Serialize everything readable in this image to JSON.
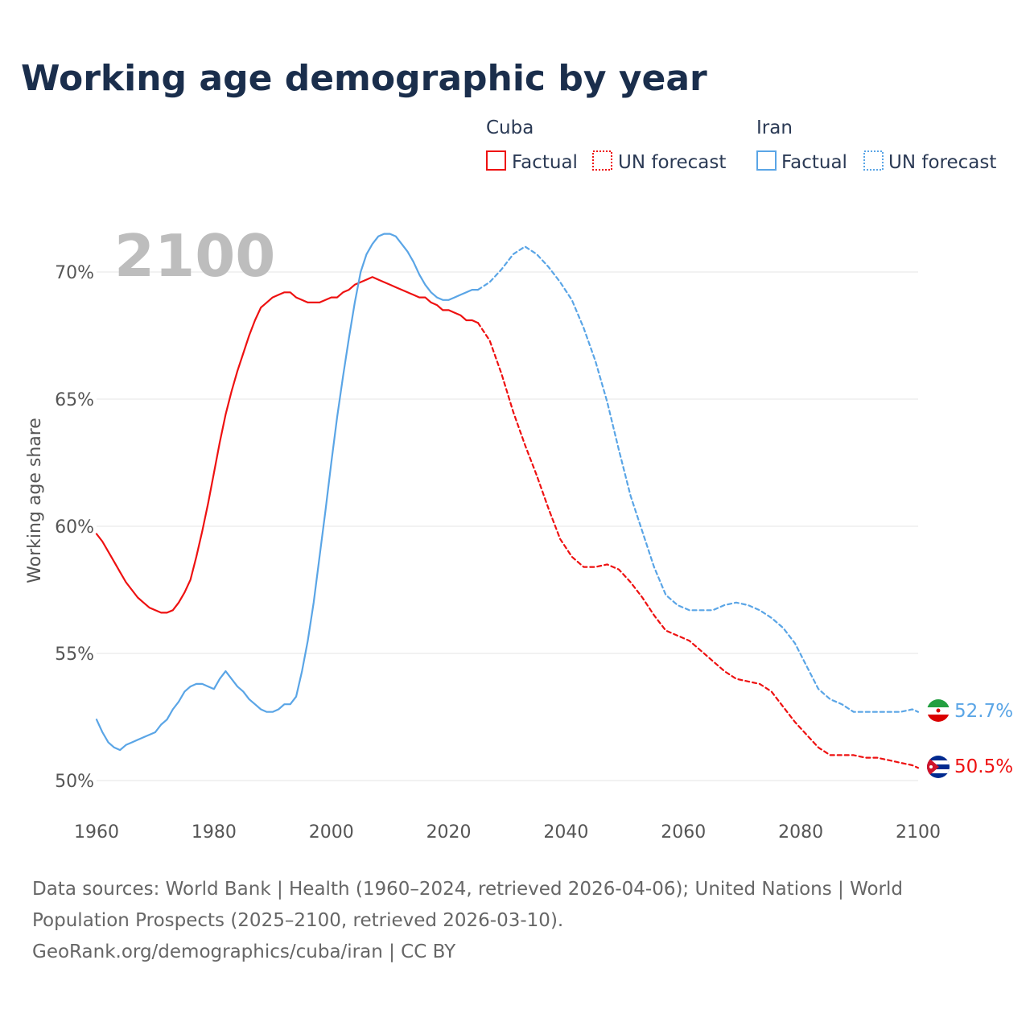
{
  "colors": {
    "cuba": "#ee1111",
    "iran": "#5aa5e6",
    "title": "#1a2e4c"
  },
  "chart_data": {
    "type": "line",
    "title": "Working age demographic by year",
    "ylabel": "Working age share",
    "xlabel": "",
    "highlight_year": "2100",
    "xlim": [
      1960,
      2100
    ],
    "ylim": [
      49,
      72
    ],
    "x_ticks": [
      1960,
      1980,
      2000,
      2020,
      2040,
      2060,
      2080,
      2100
    ],
    "y_ticks": [
      50,
      55,
      60,
      65,
      70
    ],
    "y_tick_labels": [
      "50%",
      "55%",
      "60%",
      "65%",
      "70%"
    ],
    "legend": {
      "groups": [
        {
          "name": "Cuba",
          "factual": "Factual",
          "forecast": "UN forecast",
          "color_key": "cuba"
        },
        {
          "name": "Iran",
          "factual": "Factual",
          "forecast": "UN forecast",
          "color_key": "iran"
        }
      ]
    },
    "end_labels": {
      "cuba": "50.5%",
      "iran": "52.7%"
    },
    "series": [
      {
        "name": "Cuba",
        "color_key": "cuba",
        "kind": "factual",
        "x": [
          1960,
          1961,
          1962,
          1963,
          1964,
          1965,
          1966,
          1967,
          1968,
          1969,
          1970,
          1971,
          1972,
          1973,
          1974,
          1975,
          1976,
          1977,
          1978,
          1979,
          1980,
          1981,
          1982,
          1983,
          1984,
          1985,
          1986,
          1987,
          1988,
          1989,
          1990,
          1991,
          1992,
          1993,
          1994,
          1995,
          1996,
          1997,
          1998,
          1999,
          2000,
          2001,
          2002,
          2003,
          2004,
          2005,
          2006,
          2007,
          2008,
          2009,
          2010,
          2011,
          2012,
          2013,
          2014,
          2015,
          2016,
          2017,
          2018,
          2019,
          2020,
          2021,
          2022,
          2023,
          2024,
          2025
        ],
        "y": [
          59.7,
          59.4,
          59.0,
          58.6,
          58.2,
          57.8,
          57.5,
          57.2,
          57.0,
          56.8,
          56.7,
          56.6,
          56.6,
          56.7,
          57.0,
          57.4,
          57.9,
          58.8,
          59.8,
          60.9,
          62.1,
          63.3,
          64.4,
          65.3,
          66.1,
          66.8,
          67.5,
          68.1,
          68.6,
          68.8,
          69.0,
          69.1,
          69.2,
          69.2,
          69.0,
          68.9,
          68.8,
          68.8,
          68.8,
          68.9,
          69.0,
          69.0,
          69.2,
          69.3,
          69.5,
          69.6,
          69.7,
          69.8,
          69.7,
          69.6,
          69.5,
          69.4,
          69.3,
          69.2,
          69.1,
          69.0,
          69.0,
          68.8,
          68.7,
          68.5,
          68.5,
          68.4,
          68.3,
          68.1,
          68.1,
          68.0
        ]
      },
      {
        "name": "Cuba",
        "color_key": "cuba",
        "kind": "forecast",
        "x": [
          2025,
          2027,
          2029,
          2031,
          2033,
          2035,
          2037,
          2039,
          2041,
          2043,
          2045,
          2047,
          2049,
          2051,
          2053,
          2055,
          2057,
          2059,
          2061,
          2063,
          2065,
          2067,
          2069,
          2071,
          2073,
          2075,
          2077,
          2079,
          2081,
          2083,
          2085,
          2087,
          2089,
          2091,
          2093,
          2095,
          2097,
          2099,
          2100
        ],
        "y": [
          68.0,
          67.3,
          66.0,
          64.5,
          63.2,
          62.0,
          60.7,
          59.5,
          58.8,
          58.4,
          58.4,
          58.5,
          58.3,
          57.8,
          57.2,
          56.5,
          55.9,
          55.7,
          55.5,
          55.1,
          54.7,
          54.3,
          54.0,
          53.9,
          53.8,
          53.5,
          52.9,
          52.3,
          51.8,
          51.3,
          51.0,
          51.0,
          51.0,
          50.9,
          50.9,
          50.8,
          50.7,
          50.6,
          50.5
        ]
      },
      {
        "name": "Iran",
        "color_key": "iran",
        "kind": "factual",
        "x": [
          1960,
          1961,
          1962,
          1963,
          1964,
          1965,
          1966,
          1967,
          1968,
          1969,
          1970,
          1971,
          1972,
          1973,
          1974,
          1975,
          1976,
          1977,
          1978,
          1979,
          1980,
          1981,
          1982,
          1983,
          1984,
          1985,
          1986,
          1987,
          1988,
          1989,
          1990,
          1991,
          1992,
          1993,
          1994,
          1995,
          1996,
          1997,
          1998,
          1999,
          2000,
          2001,
          2002,
          2003,
          2004,
          2005,
          2006,
          2007,
          2008,
          2009,
          2010,
          2011,
          2012,
          2013,
          2014,
          2015,
          2016,
          2017,
          2018,
          2019,
          2020,
          2021,
          2022,
          2023,
          2024,
          2025
        ],
        "y": [
          52.4,
          51.9,
          51.5,
          51.3,
          51.2,
          51.4,
          51.5,
          51.6,
          51.7,
          51.8,
          51.9,
          52.2,
          52.4,
          52.8,
          53.1,
          53.5,
          53.7,
          53.8,
          53.8,
          53.7,
          53.6,
          54.0,
          54.3,
          54.0,
          53.7,
          53.5,
          53.2,
          53.0,
          52.8,
          52.7,
          52.7,
          52.8,
          53.0,
          53.0,
          53.3,
          54.3,
          55.5,
          57.0,
          58.8,
          60.6,
          62.5,
          64.3,
          65.9,
          67.4,
          68.8,
          70.0,
          70.7,
          71.1,
          71.4,
          71.5,
          71.5,
          71.4,
          71.1,
          70.8,
          70.4,
          69.9,
          69.5,
          69.2,
          69.0,
          68.9,
          68.9,
          69.0,
          69.1,
          69.2,
          69.3,
          69.3
        ]
      },
      {
        "name": "Iran",
        "color_key": "iran",
        "kind": "forecast",
        "x": [
          2025,
          2027,
          2029,
          2031,
          2033,
          2035,
          2037,
          2039,
          2041,
          2043,
          2045,
          2047,
          2049,
          2051,
          2053,
          2055,
          2057,
          2059,
          2061,
          2063,
          2065,
          2067,
          2069,
          2071,
          2073,
          2075,
          2077,
          2079,
          2081,
          2083,
          2085,
          2087,
          2089,
          2091,
          2093,
          2095,
          2097,
          2099,
          2100
        ],
        "y": [
          69.3,
          69.6,
          70.1,
          70.7,
          71.0,
          70.7,
          70.2,
          69.6,
          68.9,
          67.8,
          66.5,
          64.9,
          63.0,
          61.2,
          59.8,
          58.4,
          57.3,
          56.9,
          56.7,
          56.7,
          56.7,
          56.9,
          57.0,
          56.9,
          56.7,
          56.4,
          56.0,
          55.4,
          54.5,
          53.6,
          53.2,
          53.0,
          52.7,
          52.7,
          52.7,
          52.7,
          52.7,
          52.8,
          52.7
        ]
      }
    ]
  },
  "sources": {
    "line1": "Data sources: World Bank | Health (1960–2024, retrieved 2026-04-06); United Nations | World Population Prospects (2025–2100, retrieved 2026-03-10).",
    "line2": "GeoRank.org/demographics/cuba/iran | CC BY"
  }
}
